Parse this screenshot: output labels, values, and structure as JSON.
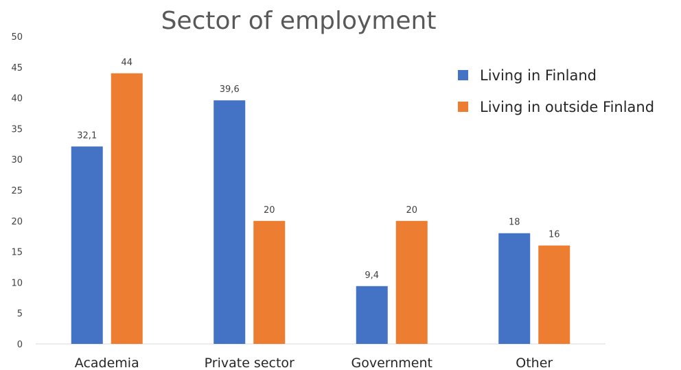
{
  "chart_data": {
    "type": "bar",
    "title": "Sector of employment",
    "categories": [
      "Academia",
      "Private sector",
      "Government",
      "Other"
    ],
    "series": [
      {
        "name": "Living in Finland",
        "values": [
          32.1,
          39.6,
          9.4,
          18
        ],
        "labels": [
          "32,1",
          "39,6",
          "9,4",
          "18"
        ],
        "color": "#4472C4"
      },
      {
        "name": "Living in outside Finland",
        "values": [
          44,
          20,
          20,
          16
        ],
        "labels": [
          "44",
          "20",
          "20",
          "16"
        ],
        "color": "#ED7D31"
      }
    ],
    "yticks": [
      0,
      5,
      10,
      15,
      20,
      25,
      30,
      35,
      40,
      45,
      50
    ],
    "ylim": [
      0,
      50
    ],
    "grid": false,
    "legend_position": "top-right"
  }
}
